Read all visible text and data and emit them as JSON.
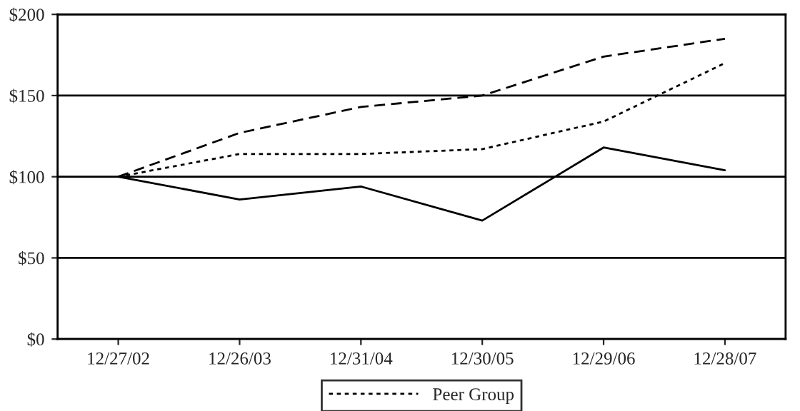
{
  "chart_data": {
    "type": "line",
    "categories": [
      "12/27/02",
      "12/26/03",
      "12/31/04",
      "12/30/05",
      "12/29/06",
      "12/28/07"
    ],
    "series": [
      {
        "color": "#000000",
        "line_style": "solid",
        "values": [
          100,
          86,
          94,
          73,
          118,
          104
        ]
      },
      {
        "color": "#000000",
        "line_style": "dashed",
        "values": [
          100,
          127,
          143,
          150,
          174,
          185
        ]
      },
      {
        "name": "Peer Group",
        "color": "#000000",
        "line_style": "dotted",
        "values": [
          100,
          114,
          114,
          117,
          134,
          170
        ]
      }
    ],
    "ylim": [
      0,
      200
    ],
    "yticks": [
      {
        "value": 0,
        "label": "$0"
      },
      {
        "value": 50,
        "label": "$50"
      },
      {
        "value": 100,
        "label": "$100"
      },
      {
        "value": 150,
        "label": "$150"
      },
      {
        "value": 200,
        "label": "$200"
      }
    ],
    "grid": "y",
    "legend": "bottom",
    "marker": "none"
  }
}
